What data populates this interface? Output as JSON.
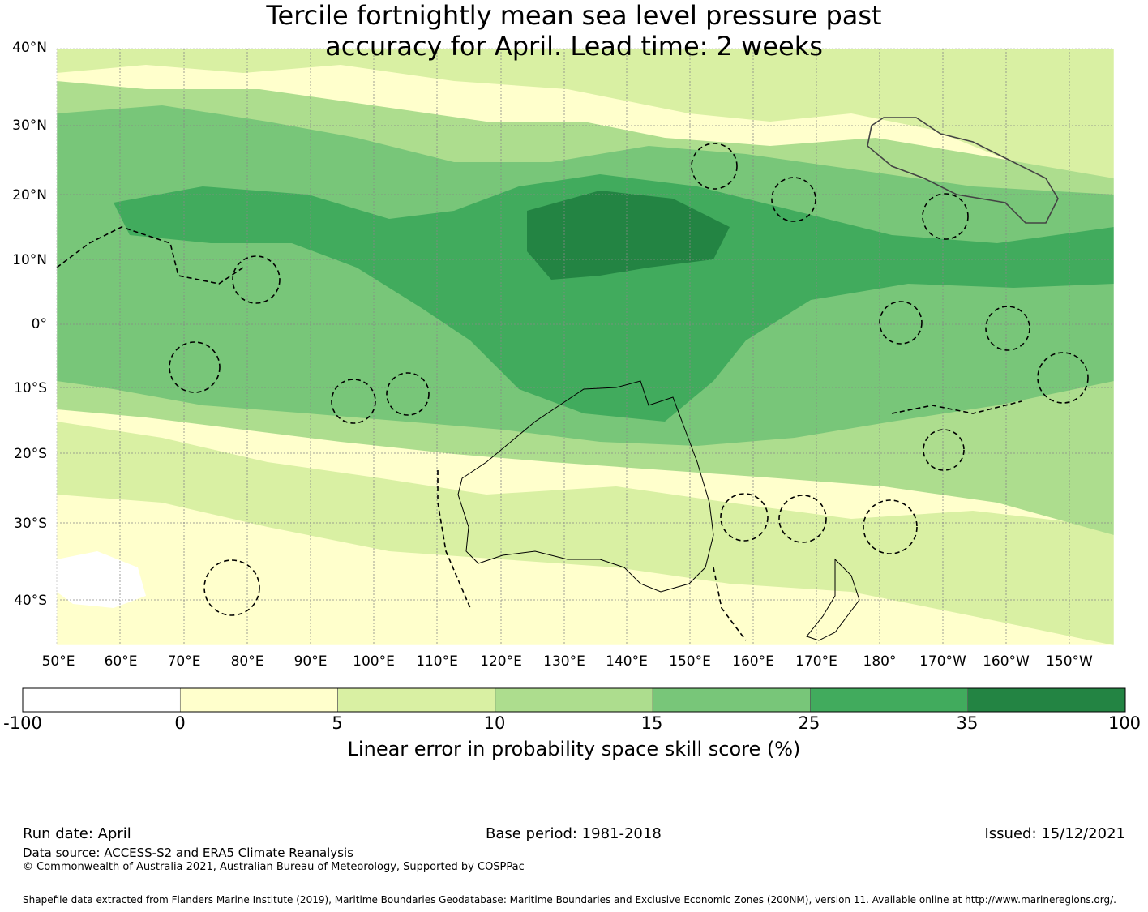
{
  "title": {
    "line1": "Tercile fortnightly mean sea level pressure past",
    "line2": "accuracy for April. Lead time: 2 weeks"
  },
  "map": {
    "lat_labels": [
      "40°N",
      "30°N",
      "20°N",
      "10°N",
      "0°",
      "10°S",
      "20°S",
      "30°S",
      "40°S"
    ],
    "lon_labels": [
      "50°E",
      "60°E",
      "70°E",
      "80°E",
      "90°E",
      "100°E",
      "110°E",
      "120°E",
      "130°E",
      "140°E",
      "150°E",
      "160°E",
      "170°E",
      "180°",
      "170°W",
      "160°W",
      "150°W"
    ],
    "lon_range": [
      50,
      206.5
    ],
    "lat_range": [
      -45,
      40
    ],
    "gridlines": true,
    "coastline_color": "#000000",
    "eez_boundary_style": "dashed"
  },
  "colorbar": {
    "ticks": [
      "-100",
      "0",
      "5",
      "10",
      "15",
      "25",
      "35",
      "100"
    ],
    "colors": [
      "#ffffff",
      "#ffffcc",
      "#d9f0a3",
      "#addd8e",
      "#78c679",
      "#41ab5d",
      "#238443"
    ],
    "label": "Linear error in probability space skill score (%)"
  },
  "footer": {
    "run_date": "Run date: April",
    "base_period": "Base period: 1981-2018",
    "issued": "Issued: 15/12/2021",
    "data_source": "Data source: ACCESS-S2 and ERA5 Climate Reanalysis",
    "copyright": "© Commonwealth of Australia 2021, Australian Bureau of Meteorology, Supported by COSPPac",
    "shapefile": "Shapefile data extracted from Flanders Marine Institute (2019), Maritime Boundaries Geodatabase: Maritime Boundaries and Exclusive Economic Zones (200NM), version 11. Available online at http://www.marineregions.org/."
  }
}
